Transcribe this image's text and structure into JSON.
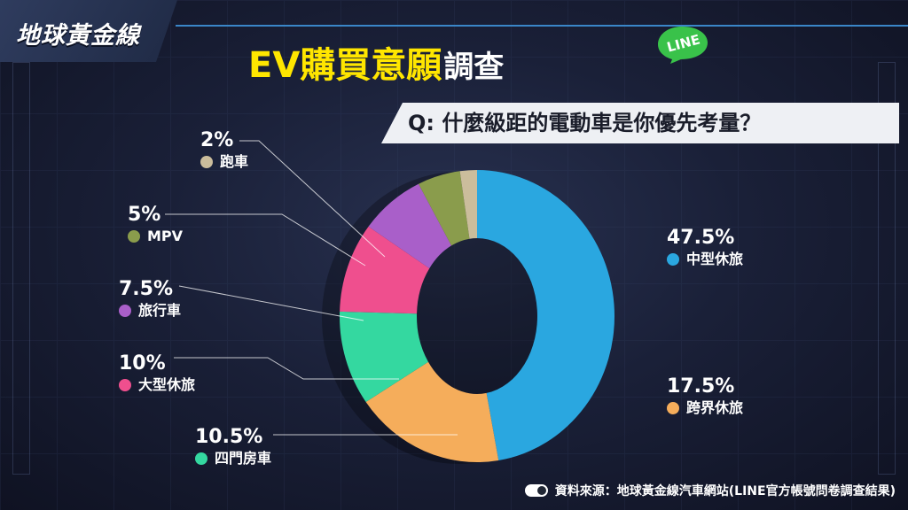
{
  "brand": {
    "logo_text": "地球黃金線",
    "line_badge": "LINE"
  },
  "header": {
    "title_main": "EV購買意願",
    "title_sub": "調查",
    "question": "Q: 什麼級距的電動車是你優先考量？"
  },
  "footer": {
    "source": "資料來源：地球黃金線汽車網站(LINE官方帳號問卷調查結果)"
  },
  "chart_data": {
    "type": "pie",
    "title": "EV購買意願調查",
    "subtitle": "Q: 什麼級距的電動車是你優先考量？",
    "donut": true,
    "legend_placement": "callouts around chart",
    "series": [
      {
        "name": "中型休旅",
        "value": 47.5,
        "label": "47.5%",
        "color": "#2aa7e0"
      },
      {
        "name": "跨界休旅",
        "value": 17.5,
        "label": "17.5%",
        "color": "#f5ad5b"
      },
      {
        "name": "四門房車",
        "value": 10.5,
        "label": "10.5%",
        "color": "#34d8a0"
      },
      {
        "name": "大型休旅",
        "value": 10,
        "label": "10%",
        "color": "#ef4f8e"
      },
      {
        "name": "旅行車",
        "value": 7.5,
        "label": "7.5%",
        "color": "#a95fc9"
      },
      {
        "name": "MPV",
        "value": 5,
        "label": "5%",
        "color": "#8a9c4c"
      },
      {
        "name": "跑車",
        "value": 2,
        "label": "2%",
        "color": "#cbbd9c"
      }
    ]
  }
}
